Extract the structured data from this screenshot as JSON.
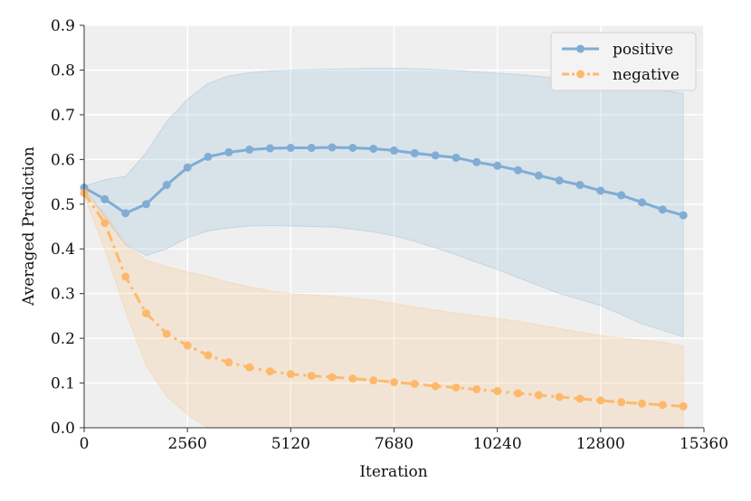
{
  "chart_data": {
    "type": "line",
    "title": "",
    "xlabel": "Iteration",
    "ylabel": "Averaged Prediction",
    "xlim": [
      0,
      15360
    ],
    "ylim": [
      0,
      0.9
    ],
    "xticks": [
      0,
      2560,
      5120,
      7680,
      10240,
      12800,
      15360
    ],
    "xtick_labels": [
      "0",
      "2560",
      "5120",
      "7680",
      "10240",
      "12800",
      "15360"
    ],
    "yticks": [
      0.0,
      0.1,
      0.2,
      0.3,
      0.4,
      0.5,
      0.6,
      0.7,
      0.8,
      0.9
    ],
    "ytick_labels": [
      "0.0",
      "0.1",
      "0.2",
      "0.3",
      "0.4",
      "0.5",
      "0.6",
      "0.7",
      "0.8",
      "0.9"
    ],
    "grid": true,
    "legend_position": "top-right",
    "x": [
      0,
      512,
      1024,
      1536,
      2048,
      2560,
      3072,
      3584,
      4096,
      4608,
      5120,
      5632,
      6144,
      6656,
      7168,
      7680,
      8192,
      8704,
      9216,
      9728,
      10240,
      10752,
      11264,
      11776,
      12288,
      12800,
      13312,
      13824,
      14336,
      14848
    ],
    "series": [
      {
        "name": "positive",
        "color": "#7fadd4",
        "linestyle": "solid",
        "values": [
          0.537,
          0.511,
          0.48,
          0.5,
          0.543,
          0.582,
          0.606,
          0.616,
          0.622,
          0.625,
          0.626,
          0.626,
          0.627,
          0.626,
          0.624,
          0.62,
          0.614,
          0.609,
          0.604,
          0.594,
          0.586,
          0.576,
          0.564,
          0.553,
          0.543,
          0.53,
          0.52,
          0.504,
          0.488,
          0.475
        ],
        "band_lower": [
          0.535,
          0.47,
          0.41,
          0.385,
          0.4,
          0.425,
          0.44,
          0.447,
          0.451,
          0.452,
          0.451,
          0.45,
          0.449,
          0.444,
          0.438,
          0.429,
          0.417,
          0.402,
          0.387,
          0.37,
          0.354,
          0.336,
          0.318,
          0.3,
          0.287,
          0.273,
          0.253,
          0.232,
          0.218,
          0.203
        ],
        "band_upper": [
          0.54,
          0.555,
          0.562,
          0.615,
          0.685,
          0.735,
          0.77,
          0.787,
          0.794,
          0.798,
          0.8,
          0.801,
          0.802,
          0.803,
          0.804,
          0.804,
          0.803,
          0.801,
          0.799,
          0.796,
          0.793,
          0.79,
          0.786,
          0.781,
          0.776,
          0.771,
          0.766,
          0.76,
          0.754,
          0.748
        ]
      },
      {
        "name": "negative",
        "color": "#fdb96b",
        "linestyle": "dashdot",
        "values": [
          0.525,
          0.458,
          0.338,
          0.256,
          0.21,
          0.184,
          0.162,
          0.146,
          0.135,
          0.126,
          0.12,
          0.116,
          0.113,
          0.11,
          0.106,
          0.102,
          0.098,
          0.093,
          0.09,
          0.086,
          0.082,
          0.077,
          0.073,
          0.069,
          0.065,
          0.061,
          0.057,
          0.054,
          0.051,
          0.048
        ],
        "band_lower": [
          0.52,
          0.4,
          0.26,
          0.14,
          0.07,
          0.03,
          0.0,
          0.0,
          0.0,
          0.0,
          0.0,
          0.0,
          0.0,
          0.0,
          0.0,
          0.0,
          0.0,
          0.0,
          0.0,
          0.0,
          0.0,
          0.0,
          0.0,
          0.0,
          0.0,
          0.0,
          0.0,
          0.0,
          0.0,
          0.0
        ],
        "band_upper": [
          0.53,
          0.48,
          0.41,
          0.375,
          0.36,
          0.348,
          0.338,
          0.325,
          0.315,
          0.306,
          0.3,
          0.297,
          0.294,
          0.29,
          0.285,
          0.278,
          0.27,
          0.263,
          0.256,
          0.25,
          0.244,
          0.238,
          0.23,
          0.222,
          0.214,
          0.206,
          0.2,
          0.196,
          0.191,
          0.183
        ]
      }
    ]
  }
}
